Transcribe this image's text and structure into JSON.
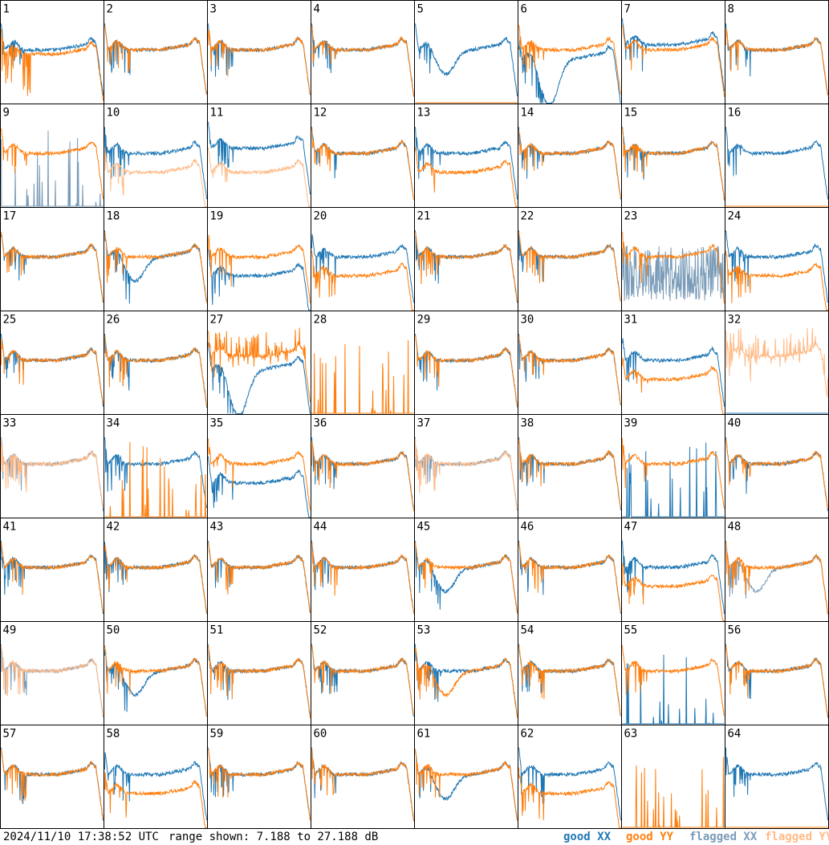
{
  "footer": {
    "timestamp": "2024/11/10 17:38:52 UTC",
    "range_text": "range shown: 7.188 to 27.188 dB"
  },
  "colors": {
    "good_xx": "#1f77b4",
    "good_yy": "#ff7f0e",
    "flagged_xx": "#7a9cb8",
    "flagged_yy": "#ffbb88",
    "panel_border": "#000000"
  },
  "chart_data": {
    "type": "line",
    "layout": "8x8 small multiples",
    "ylim": [
      7.188,
      27.188
    ],
    "y_units": "dB",
    "legend": [
      {
        "label": "good XX",
        "color": "#1f77b4"
      },
      {
        "label": "good YY",
        "color": "#ff7f0e"
      },
      {
        "label": "flagged XX",
        "color": "#7a9cb8"
      },
      {
        "label": "flagged YY",
        "color": "#ffbb88"
      }
    ],
    "panels": [
      {
        "id": "1",
        "xx": "good",
        "yy": "good",
        "shape_xx": "normal",
        "shape_yy": "spiky_low"
      },
      {
        "id": "2",
        "xx": "good",
        "yy": "good",
        "shape_xx": "normal",
        "shape_yy": "normal"
      },
      {
        "id": "3",
        "xx": "good",
        "yy": "good",
        "shape_xx": "normal",
        "shape_yy": "normal"
      },
      {
        "id": "4",
        "xx": "good",
        "yy": "good",
        "shape_xx": "normal",
        "shape_yy": "normal"
      },
      {
        "id": "5",
        "xx": "good",
        "yy": "good",
        "shape_xx": "dip",
        "shape_yy": "zero"
      },
      {
        "id": "6",
        "xx": "good",
        "yy": "good",
        "shape_xx": "deep_dip",
        "shape_yy": "normal"
      },
      {
        "id": "7",
        "xx": "good",
        "yy": "good",
        "shape_xx": "high",
        "shape_yy": "normal"
      },
      {
        "id": "8",
        "xx": "good",
        "yy": "good",
        "shape_xx": "normal",
        "shape_yy": "normal"
      },
      {
        "id": "9",
        "xx": "flagged",
        "yy": "good",
        "shape_xx": "zero_spikes",
        "shape_yy": "normal"
      },
      {
        "id": "10",
        "xx": "good",
        "yy": "flagged",
        "shape_xx": "normal",
        "shape_yy": "low"
      },
      {
        "id": "11",
        "xx": "good",
        "yy": "flagged",
        "shape_xx": "high",
        "shape_yy": "low"
      },
      {
        "id": "12",
        "xx": "good",
        "yy": "good",
        "shape_xx": "normal",
        "shape_yy": "normal"
      },
      {
        "id": "13",
        "xx": "good",
        "yy": "good",
        "shape_xx": "normal",
        "shape_yy": "low"
      },
      {
        "id": "14",
        "xx": "good",
        "yy": "good",
        "shape_xx": "normal",
        "shape_yy": "normal"
      },
      {
        "id": "15",
        "xx": "good",
        "yy": "good",
        "shape_xx": "normal",
        "shape_yy": "normal"
      },
      {
        "id": "16",
        "xx": "good",
        "yy": "good",
        "shape_xx": "normal",
        "shape_yy": "zero"
      },
      {
        "id": "17",
        "xx": "good",
        "yy": "good",
        "shape_xx": "normal",
        "shape_yy": "normal"
      },
      {
        "id": "18",
        "xx": "good",
        "yy": "good",
        "shape_xx": "dip",
        "shape_yy": "normal"
      },
      {
        "id": "19",
        "xx": "good",
        "yy": "good",
        "shape_xx": "low",
        "shape_yy": "normal"
      },
      {
        "id": "20",
        "xx": "good",
        "yy": "good",
        "shape_xx": "normal",
        "shape_yy": "low"
      },
      {
        "id": "21",
        "xx": "good",
        "yy": "good",
        "shape_xx": "normal",
        "shape_yy": "normal"
      },
      {
        "id": "22",
        "xx": "good",
        "yy": "good",
        "shape_xx": "normal",
        "shape_yy": "normal"
      },
      {
        "id": "23",
        "xx": "flagged",
        "yy": "good",
        "shape_xx": "noisy",
        "shape_yy": "normal"
      },
      {
        "id": "24",
        "xx": "good",
        "yy": "good",
        "shape_xx": "normal",
        "shape_yy": "low"
      },
      {
        "id": "25",
        "xx": "good",
        "yy": "good",
        "shape_xx": "normal",
        "shape_yy": "normal"
      },
      {
        "id": "26",
        "xx": "good",
        "yy": "good",
        "shape_xx": "normal",
        "shape_yy": "normal"
      },
      {
        "id": "27",
        "xx": "good",
        "yy": "good",
        "shape_xx": "deep_dip",
        "shape_yy": "spiky_high"
      },
      {
        "id": "28",
        "xx": "good",
        "yy": "good",
        "shape_xx": "zero",
        "shape_yy": "zero_spikes"
      },
      {
        "id": "29",
        "xx": "good",
        "yy": "good",
        "shape_xx": "normal",
        "shape_yy": "normal"
      },
      {
        "id": "30",
        "xx": "good",
        "yy": "good",
        "shape_xx": "normal",
        "shape_yy": "normal"
      },
      {
        "id": "31",
        "xx": "good",
        "yy": "good",
        "shape_xx": "normal",
        "shape_yy": "low"
      },
      {
        "id": "32",
        "xx": "good",
        "yy": "flagged",
        "shape_xx": "zero",
        "shape_yy": "spiky_high"
      },
      {
        "id": "33",
        "xx": "flagged",
        "yy": "flagged",
        "shape_xx": "normal",
        "shape_yy": "normal"
      },
      {
        "id": "34",
        "xx": "good",
        "yy": "good",
        "shape_xx": "normal",
        "shape_yy": "zero_spikes"
      },
      {
        "id": "35",
        "xx": "good",
        "yy": "good",
        "shape_xx": "low",
        "shape_yy": "normal"
      },
      {
        "id": "36",
        "xx": "good",
        "yy": "good",
        "shape_xx": "normal",
        "shape_yy": "normal"
      },
      {
        "id": "37",
        "xx": "flagged",
        "yy": "flagged",
        "shape_xx": "normal",
        "shape_yy": "normal"
      },
      {
        "id": "38",
        "xx": "good",
        "yy": "good",
        "shape_xx": "normal",
        "shape_yy": "normal"
      },
      {
        "id": "39",
        "xx": "good",
        "yy": "good",
        "shape_xx": "zero_spikes",
        "shape_yy": "normal"
      },
      {
        "id": "40",
        "xx": "good",
        "yy": "good",
        "shape_xx": "normal",
        "shape_yy": "normal"
      },
      {
        "id": "41",
        "xx": "good",
        "yy": "good",
        "shape_xx": "normal",
        "shape_yy": "normal"
      },
      {
        "id": "42",
        "xx": "good",
        "yy": "good",
        "shape_xx": "normal",
        "shape_yy": "normal"
      },
      {
        "id": "43",
        "xx": "good",
        "yy": "good",
        "shape_xx": "normal",
        "shape_yy": "normal"
      },
      {
        "id": "44",
        "xx": "good",
        "yy": "good",
        "shape_xx": "normal",
        "shape_yy": "normal"
      },
      {
        "id": "45",
        "xx": "good",
        "yy": "good",
        "shape_xx": "dip",
        "shape_yy": "normal"
      },
      {
        "id": "46",
        "xx": "good",
        "yy": "good",
        "shape_xx": "normal",
        "shape_yy": "normal"
      },
      {
        "id": "47",
        "xx": "good",
        "yy": "good",
        "shape_xx": "normal",
        "shape_yy": "low"
      },
      {
        "id": "48",
        "xx": "flagged",
        "yy": "good",
        "shape_xx": "dip",
        "shape_yy": "normal"
      },
      {
        "id": "49",
        "xx": "flagged",
        "yy": "flagged",
        "shape_xx": "normal",
        "shape_yy": "normal"
      },
      {
        "id": "50",
        "xx": "good",
        "yy": "good",
        "shape_xx": "dip",
        "shape_yy": "normal"
      },
      {
        "id": "51",
        "xx": "good",
        "yy": "good",
        "shape_xx": "normal",
        "shape_yy": "normal"
      },
      {
        "id": "52",
        "xx": "good",
        "yy": "good",
        "shape_xx": "normal",
        "shape_yy": "normal"
      },
      {
        "id": "53",
        "xx": "good",
        "yy": "good",
        "shape_xx": "normal",
        "shape_yy": "dip"
      },
      {
        "id": "54",
        "xx": "good",
        "yy": "good",
        "shape_xx": "normal",
        "shape_yy": "normal"
      },
      {
        "id": "55",
        "xx": "good",
        "yy": "good",
        "shape_xx": "zero_spikes",
        "shape_yy": "normal"
      },
      {
        "id": "56",
        "xx": "good",
        "yy": "good",
        "shape_xx": "normal",
        "shape_yy": "normal"
      },
      {
        "id": "57",
        "xx": "good",
        "yy": "good",
        "shape_xx": "normal",
        "shape_yy": "normal"
      },
      {
        "id": "58",
        "xx": "good",
        "yy": "good",
        "shape_xx": "normal",
        "shape_yy": "low"
      },
      {
        "id": "59",
        "xx": "good",
        "yy": "good",
        "shape_xx": "normal",
        "shape_yy": "normal"
      },
      {
        "id": "60",
        "xx": "good",
        "yy": "good",
        "shape_xx": "normal",
        "shape_yy": "normal"
      },
      {
        "id": "61",
        "xx": "good",
        "yy": "good",
        "shape_xx": "dip",
        "shape_yy": "normal"
      },
      {
        "id": "62",
        "xx": "good",
        "yy": "good",
        "shape_xx": "normal",
        "shape_yy": "low"
      },
      {
        "id": "63",
        "xx": "good",
        "yy": "good",
        "shape_xx": "zero",
        "shape_yy": "zero_spikes"
      },
      {
        "id": "64",
        "xx": "good",
        "yy": "good",
        "shape_xx": "normal",
        "shape_yy": "zero"
      }
    ]
  }
}
